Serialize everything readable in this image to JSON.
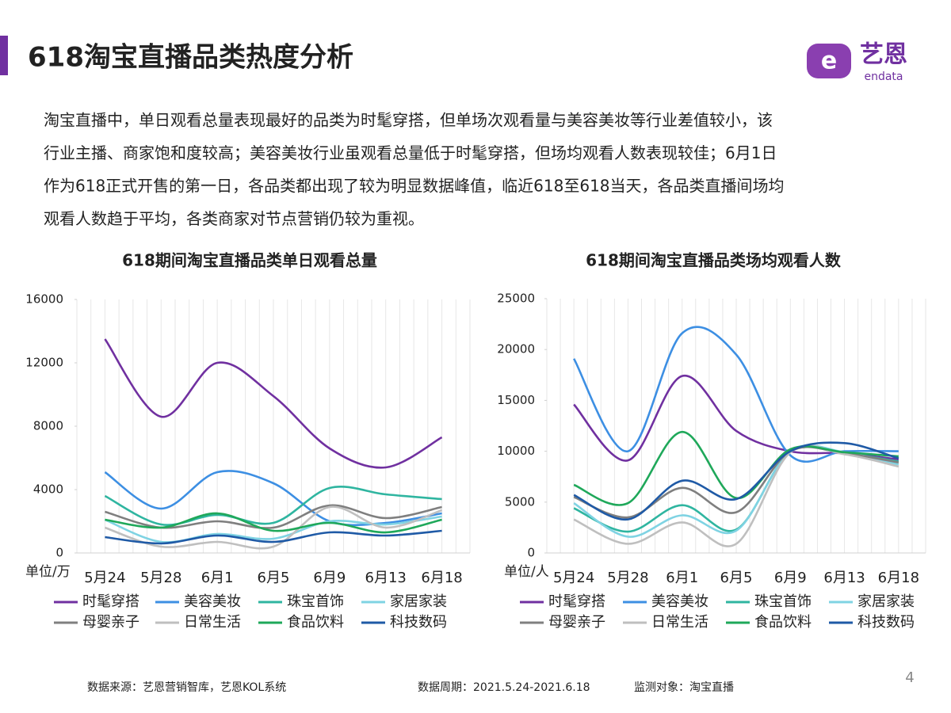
{
  "header": {
    "title": "618淘宝直播品类热度分析",
    "logo_text": "艺恩",
    "logo_sub": "endata"
  },
  "paragraph": [
    "淘宝直播中，单日观看总量表现最好的品类为时髦穿搭，但单场次观看量与美容美妆等行业差值较小，该",
    "行业主播、商家饱和度较高；美容美妆行业虽观看总量低于时髦穿搭，但场均观看人数表现较佳；6月1日",
    "作为618正式开售的第一日，各品类都出现了较为明显数据峰值，临近618至618当天，各品类直播间场均",
    "观看人数趋于平均，各类商家对节点营销仍较为重视。"
  ],
  "chart_data": [
    {
      "type": "line",
      "title": "618期间淘宝直播品类单日观看总量",
      "y_unit": "单位/万",
      "categories": [
        "5月24",
        "5月28",
        "6月1",
        "6月5",
        "6月9",
        "6月13",
        "6月18"
      ],
      "ylim": [
        0,
        16000
      ],
      "yticks": [
        0,
        4000,
        8000,
        12000,
        16000
      ],
      "legend": "bottom",
      "series": [
        {
          "name": "时髦穿搭",
          "color": "#7030a0",
          "values": [
            13500,
            8600,
            12000,
            9900,
            6600,
            5400,
            7300
          ]
        },
        {
          "name": "美容美妆",
          "color": "#3d8fe3",
          "values": [
            5100,
            2800,
            5100,
            4400,
            2000,
            1900,
            2500
          ]
        },
        {
          "name": "珠宝首饰",
          "color": "#2fb5a0",
          "values": [
            3600,
            1800,
            2400,
            1900,
            4100,
            3700,
            3400
          ]
        },
        {
          "name": "家居家装",
          "color": "#7fd3e3",
          "values": [
            2100,
            700,
            1200,
            900,
            2000,
            1800,
            2300
          ]
        },
        {
          "name": "母婴亲子",
          "color": "#7f7f7f",
          "values": [
            2600,
            1600,
            2000,
            1600,
            3000,
            2200,
            2900
          ]
        },
        {
          "name": "日常生活",
          "color": "#bfbfbf",
          "values": [
            1600,
            400,
            700,
            400,
            2900,
            1600,
            2700
          ]
        },
        {
          "name": "食品饮料",
          "color": "#1fa85a",
          "values": [
            2100,
            1600,
            2500,
            1400,
            1900,
            1300,
            2100
          ]
        },
        {
          "name": "科技数码",
          "color": "#1f5aa6",
          "values": [
            1000,
            600,
            1100,
            700,
            1300,
            1100,
            1400
          ]
        }
      ]
    },
    {
      "type": "line",
      "title": "618期间淘宝直播品类场均观看人数",
      "y_unit": "单位/人",
      "categories": [
        "5月24",
        "5月28",
        "6月1",
        "6月5",
        "6月9",
        "6月13",
        "6月18"
      ],
      "ylim": [
        0,
        25000
      ],
      "yticks": [
        0,
        5000,
        10000,
        15000,
        20000,
        25000
      ],
      "legend": "bottom",
      "series": [
        {
          "name": "时髦穿搭",
          "color": "#7030a0",
          "values": [
            14600,
            9100,
            17400,
            12000,
            10000,
            9800,
            9200
          ]
        },
        {
          "name": "美容美妆",
          "color": "#3d8fe3",
          "values": [
            19100,
            10000,
            21600,
            19500,
            9600,
            10000,
            10000
          ]
        },
        {
          "name": "珠宝首饰",
          "color": "#2fb5a0",
          "values": [
            4400,
            2100,
            4700,
            2300,
            10000,
            9800,
            9000
          ]
        },
        {
          "name": "家居家装",
          "color": "#7fd3e3",
          "values": [
            4900,
            1600,
            3700,
            2200,
            10000,
            9900,
            8700
          ]
        },
        {
          "name": "母婴亲子",
          "color": "#7f7f7f",
          "values": [
            5500,
            3500,
            6400,
            4000,
            10000,
            9800,
            8900
          ]
        },
        {
          "name": "日常生活",
          "color": "#bfbfbf",
          "values": [
            3300,
            900,
            3000,
            900,
            9900,
            9700,
            8500
          ]
        },
        {
          "name": "食品饮料",
          "color": "#1fa85a",
          "values": [
            6700,
            4900,
            11900,
            5400,
            10200,
            9900,
            9500
          ]
        },
        {
          "name": "科技数码",
          "color": "#1f5aa6",
          "values": [
            5700,
            3300,
            7100,
            5300,
            10000,
            10800,
            9300
          ]
        }
      ]
    }
  ],
  "footer": {
    "source": "数据来源：艺恩营销智库，艺恩KOL系统",
    "period": "数据周期：2021.5.24-2021.6.18",
    "target": "监测对象：淘宝直播",
    "page_number": 4
  }
}
